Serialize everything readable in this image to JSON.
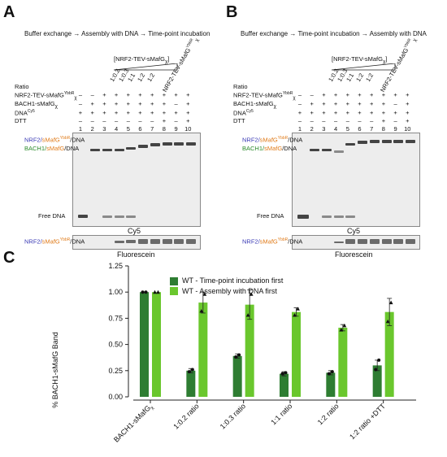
{
  "panels": {
    "A": {
      "letter": "A",
      "flow": [
        "Buffer exchange",
        "Assembly with DNA",
        "Time-point incubation"
      ],
      "titration_label": "[NRF2-TEV-sMafG",
      "titration_sub": "χ",
      "titration_close": "]",
      "ratios": [
        "1:0.2",
        "1:0.3",
        "1:1",
        "1:2",
        "1:2"
      ],
      "wt_label": "NRF2-TEV-sMafG",
      "wt_sup": "YbbR",
      "wt_sub": "χ",
      "caption_gel": "Cy5",
      "caption_fluor": "Fluorescein"
    },
    "B": {
      "letter": "B",
      "flow": [
        "Buffer exchange",
        "Time-point incubation",
        "Assembly with DNA"
      ],
      "titration_label": "[NRF2-TEV-sMafG",
      "titration_sub": "χ",
      "titration_close": "]",
      "ratios": [
        "1:0.2",
        "1:0.3",
        "1:1",
        "1:2",
        "1:2"
      ],
      "wt_label": "NRF2-TEV-sMafG",
      "wt_sup": "YbbR",
      "wt_sub": "χ",
      "caption_gel": "Cy5",
      "caption_fluor": "Fluorescein"
    },
    "C": {
      "letter": "C"
    }
  },
  "rows": {
    "ratio": "Ratio",
    "nrf2": "NRF2-TEV-sMafG",
    "nrf2_sup": "YbbR",
    "nrf2_sub": "χ",
    "bach1": "BACH1-sMafG",
    "bach1_sub": "χ",
    "dna": "DNA",
    "dna_sup": "Cy5",
    "dtt": "DTT"
  },
  "lanes": [
    "1",
    "2",
    "3",
    "4",
    "5",
    "6",
    "7",
    "8",
    "9",
    "10"
  ],
  "marks": {
    "nrf2": [
      "–",
      "–",
      "+",
      "+",
      "+",
      "+",
      "+",
      "+",
      "+",
      "+"
    ],
    "bach1": [
      "–",
      "+",
      "+",
      "+",
      "+",
      "+",
      "+",
      "+",
      "–",
      "+"
    ],
    "dna": [
      "+",
      "+",
      "+",
      "+",
      "+",
      "+",
      "+",
      "+",
      "+",
      "+"
    ],
    "dtt": [
      "–",
      "–",
      "–",
      "–",
      "–",
      "–",
      "–",
      "+",
      "–",
      "+"
    ]
  },
  "band_labels": {
    "nrf2": "NRF2/",
    "smafg": "sMafG",
    "smafg_sup": "YbbR",
    "dna_suffix": "/DNA",
    "bach1": "BACH1/",
    "bach1_smafg": "sMafG",
    "free_dna": "Free DNA"
  },
  "colors": {
    "dark_green": "#2e7d32",
    "light_green": "#6ac72d",
    "nrf2_blue": "#3b3bb5",
    "smafg_orange": "#e07b1a",
    "bach1_green": "#2a8a2a"
  },
  "chart_data": {
    "type": "bar",
    "categories": [
      "BACH1-sMafGχ",
      "1:0.2 ratio",
      "1:0.3 ratio",
      "1:1 ratio",
      "1:2 ratio",
      "1:2 ratio +DTT"
    ],
    "category_main": [
      "BACH1-sMafG",
      "1:0.2 ratio",
      "1:0.3 ratio",
      "1:1 ratio",
      "1:2 ratio",
      "1:2 ratio +DTT"
    ],
    "category_sub": [
      "χ",
      "",
      "",
      "",
      "",
      ""
    ],
    "series": [
      {
        "name": "WT - Time-point incubation first",
        "values": [
          1.0,
          0.25,
          0.39,
          0.22,
          0.23,
          0.3
        ],
        "errors": [
          0.0,
          0.02,
          0.02,
          0.02,
          0.02,
          0.05
        ],
        "points": [
          [
            1.0,
            1.0
          ],
          [
            0.24,
            0.26
          ],
          [
            0.38,
            0.4
          ],
          [
            0.22,
            0.23
          ],
          [
            0.22,
            0.24
          ],
          [
            0.26,
            0.35
          ]
        ]
      },
      {
        "name": "WT - Assembly with DNA first",
        "values": [
          1.0,
          0.9,
          0.88,
          0.81,
          0.66,
          0.81
        ],
        "errors": [
          0.0,
          0.1,
          0.14,
          0.04,
          0.03,
          0.13
        ],
        "points": [
          [
            1.0,
            1.0
          ],
          [
            0.82,
            0.98
          ],
          [
            0.78,
            0.98
          ],
          [
            0.78,
            0.84
          ],
          [
            0.64,
            0.68
          ],
          [
            0.72,
            0.9
          ]
        ]
      }
    ],
    "ylabel": "% BACH1-sMafG Band",
    "ylim": [
      0,
      1.25
    ],
    "yticks": [
      "0.00",
      "0.25",
      "0.50",
      "0.75",
      "1.00",
      "1.25"
    ],
    "ytick_values": [
      0,
      0.25,
      0.5,
      0.75,
      1.0,
      1.25
    ],
    "legend_position": "top-center"
  }
}
